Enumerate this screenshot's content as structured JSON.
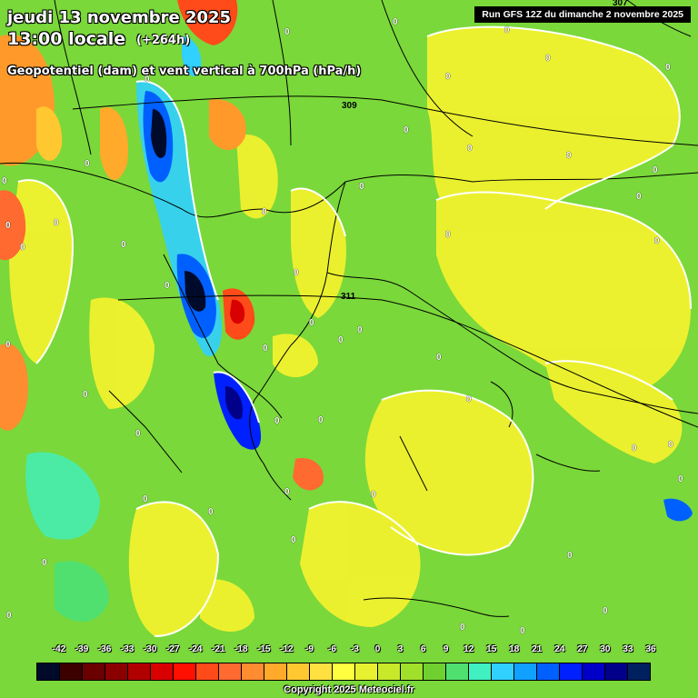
{
  "header": {
    "date": "jeudi 13 novembre 2025",
    "time": "13:00 locale",
    "lead": "(+264h)",
    "parameter": "Geopotentiel (dam) et vent vertical à 700hPa (hPa/h)",
    "run": "Run GFS 12Z du dimanche 2 novembre 2025"
  },
  "legend": {
    "ticks": [
      "-42",
      "-39",
      "-36",
      "-33",
      "-30",
      "-27",
      "-24",
      "-21",
      "-18",
      "-15",
      "-12",
      "-9",
      "-6",
      "-3",
      "0",
      "3",
      "6",
      "9",
      "12",
      "15",
      "18",
      "21",
      "24",
      "27",
      "30",
      "33",
      "36"
    ],
    "colors": [
      "#000a2a",
      "#3c0000",
      "#6a0000",
      "#8a0000",
      "#b00000",
      "#d80000",
      "#ff1000",
      "#ff4a1a",
      "#ff6a30",
      "#ff8c30",
      "#ffaa2a",
      "#ffc830",
      "#ffe040",
      "#ffff40",
      "#e8f030",
      "#c8e82a",
      "#a0e02a",
      "#70d030",
      "#50e070",
      "#40f0c0",
      "#30d0ff",
      "#10a0ff",
      "#0060ff",
      "#0020ff",
      "#0000c8",
      "#00008a",
      "#002060"
    ]
  },
  "map": {
    "geopotential_labels": [
      "309",
      "311",
      "307"
    ],
    "contour_label": "0",
    "colors": {
      "background": "#7ad83a",
      "positive": "#ffff40",
      "negative_strong": "#0000c8",
      "positive_strong": "#ff1000"
    }
  },
  "footer": {
    "copyright": "Copyright 2025 Meteociel.fr"
  }
}
